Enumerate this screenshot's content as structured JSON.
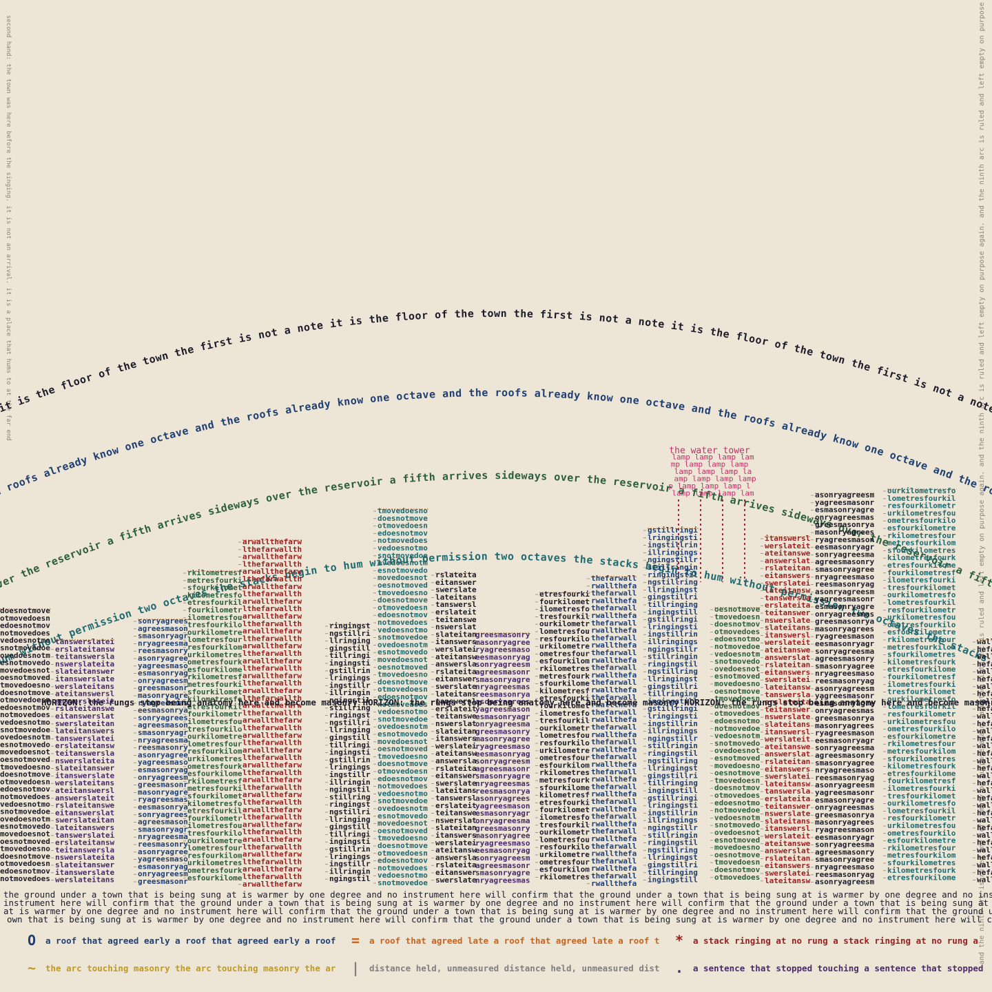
{
  "side_notes": {
    "left": "second hand: the town was here before the singing. it is not an arrival. it is a place that hums to at the far end",
    "right": "and the ninth arc is ruled and left empty on purpose again."
  },
  "arcs": [
    {
      "text": "the first is not a note it is the floor of the town",
      "color": "#1c1c2a"
    },
    {
      "text": "one octave and the roofs already know",
      "color": "#1f3f73"
    },
    {
      "text": "a fifth arrives sideways over the reservoir",
      "color": "#2b5e3e"
    },
    {
      "text": "two octaves the stacks begin to hum without permission",
      "color": "#1f6a70"
    }
  ],
  "horizon": "HORIZON: the rungs stop being anatomy here and become masonry",
  "water_tower": {
    "label": "the water tower",
    "word": "lamp",
    "color": "#c0306a"
  },
  "buildings": [
    {
      "word": "doesnotmove",
      "color": "#1c1c2a"
    },
    {
      "word": "itanswerslate",
      "color": "#4a2a6a"
    },
    {
      "word": "masonryagrees",
      "color": "#1f3f73"
    },
    {
      "word": "fourkilometres",
      "color": "#2b5e3e"
    },
    {
      "word": "thefarwall",
      "color": "#9a2020"
    },
    {
      "word": "stillringing",
      "color": "#1c1c2a"
    },
    {
      "word": "doesnotmove",
      "color": "#1f6a70"
    },
    {
      "word": "itanswerslate",
      "color": "#1c1c2a"
    },
    {
      "word": "masonryagrees",
      "color": "#4a2a6a"
    },
    {
      "word": "fourkilometres",
      "color": "#1c1c2a"
    },
    {
      "word": "thefarwall",
      "color": "#1f3f73"
    },
    {
      "word": "stillringing",
      "color": "#1f3f73"
    },
    {
      "word": "doesnotmove",
      "color": "#2b5e3e"
    },
    {
      "word": "itanswerslate",
      "color": "#9a2020"
    },
    {
      "word": "masonryagrees",
      "color": "#1c1c2a"
    },
    {
      "word": "fourkilometres",
      "color": "#1f6a70"
    },
    {
      "word": "thefarwall",
      "color": "#1c1c2a"
    }
  ],
  "ground": "the ground under a town that is being sung at is warmer by one degree and no instrument here will confirm that",
  "legend": [
    {
      "symbol": "O",
      "text": "a roof that agreed early",
      "color": "#1f3f73"
    },
    {
      "symbol": "=",
      "text": "a roof that agreed late",
      "color": "#c8641e"
    },
    {
      "symbol": "*",
      "text": "a stack ringing at no rung",
      "color": "#9a2020"
    },
    {
      "symbol": "~",
      "text": "the arc touching masonry",
      "color": "#c09a20"
    },
    {
      "symbol": "|",
      "text": "distance held, unmeasured",
      "color": "#808080"
    },
    {
      "symbol": ".",
      "text": "a sentence that stopped touching",
      "color": "#4a2a6a"
    }
  ]
}
